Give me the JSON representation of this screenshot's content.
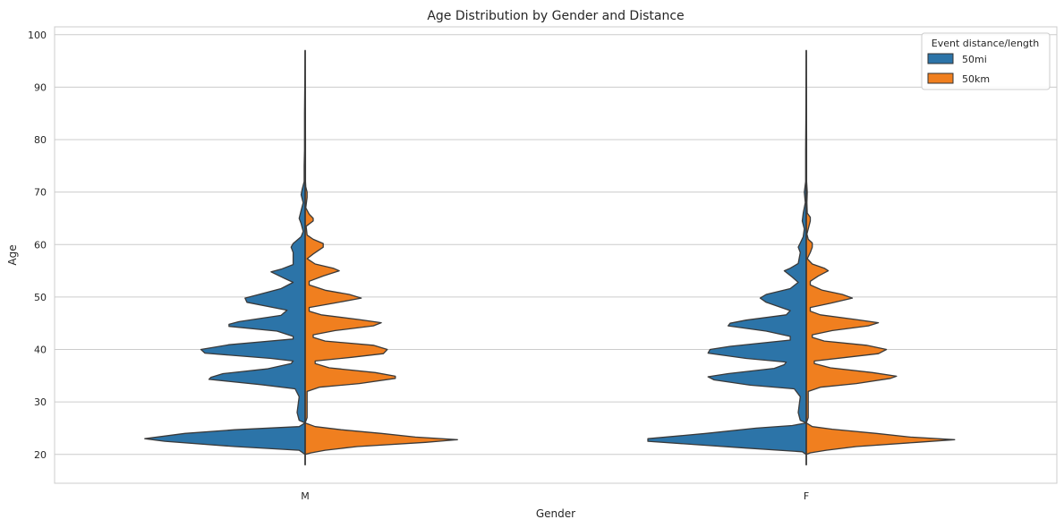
{
  "chart_data": {
    "type": "violin",
    "title": "Age Distribution by Gender and Distance",
    "xlabel": "Gender",
    "ylabel": "Age",
    "categories": [
      "M",
      "F"
    ],
    "ylim": [
      14.5,
      101.5
    ],
    "yticks": [
      20,
      30,
      40,
      50,
      60,
      70,
      80,
      90,
      100
    ],
    "grid": true,
    "split": true,
    "legend": {
      "title": "Event distance/length",
      "placement": "top-right",
      "entries": [
        {
          "name": "50mi",
          "color": "#2c74a8"
        },
        {
          "name": "50km",
          "color": "#f07f1f"
        }
      ]
    },
    "series": [
      {
        "name": "50mi",
        "color": "#2c74a8",
        "side": "left",
        "violins": [
          {
            "category": "M",
            "profile": [
              [
                18,
                0
              ],
              [
                20,
                0
              ],
              [
                20.8,
                0.03
              ],
              [
                21.5,
                0.35
              ],
              [
                22.5,
                0.7
              ],
              [
                23,
                0.8
              ],
              [
                24,
                0.6
              ],
              [
                24.7,
                0.35
              ],
              [
                25.3,
                0.03
              ],
              [
                26,
                0
              ],
              [
                26.5,
                0.03
              ],
              [
                28,
                0.04
              ],
              [
                31,
                0.03
              ],
              [
                32.5,
                0.05
              ],
              [
                33.3,
                0.22
              ],
              [
                34.3,
                0.48
              ],
              [
                34.7,
                0.47
              ],
              [
                35.4,
                0.41
              ],
              [
                36.3,
                0.19
              ],
              [
                37.3,
                0.07
              ],
              [
                37.8,
                0.06
              ],
              [
                38.3,
                0.17
              ],
              [
                39.3,
                0.5
              ],
              [
                40,
                0.52
              ],
              [
                40.9,
                0.38
              ],
              [
                42,
                0.06
              ],
              [
                42.5,
                0.06
              ],
              [
                43.5,
                0.14
              ],
              [
                44.4,
                0.38
              ],
              [
                44.8,
                0.38
              ],
              [
                45.3,
                0.33
              ],
              [
                46.5,
                0.12
              ],
              [
                47.5,
                0.09
              ],
              [
                49,
                0.29
              ],
              [
                49.8,
                0.3
              ],
              [
                50.5,
                0.23
              ],
              [
                51.6,
                0.12
              ],
              [
                52.8,
                0.06
              ],
              [
                53.5,
                0.1
              ],
              [
                54.8,
                0.17
              ],
              [
                55.3,
                0.12
              ],
              [
                56.2,
                0.06
              ],
              [
                58.5,
                0.06
              ],
              [
                59.5,
                0.07
              ],
              [
                60.2,
                0.06
              ],
              [
                61.5,
                0.02
              ],
              [
                62.5,
                0.01
              ],
              [
                64,
                0.02
              ],
              [
                65,
                0.03
              ],
              [
                66.5,
                0.02
              ],
              [
                68,
                0.01
              ],
              [
                69.5,
                0.02
              ],
              [
                70.5,
                0.015
              ],
              [
                72,
                0.005
              ],
              [
                75,
                0.005
              ],
              [
                78,
                0.003
              ],
              [
                85,
                0.003
              ],
              [
                97,
                0
              ]
            ]
          },
          {
            "category": "F",
            "profile": [
              [
                18,
                0
              ],
              [
                20,
                0
              ],
              [
                20.5,
                0.02
              ],
              [
                21.2,
                0.3
              ],
              [
                22.5,
                0.79
              ],
              [
                23,
                0.79
              ],
              [
                24,
                0.5
              ],
              [
                25,
                0.25
              ],
              [
                25.5,
                0.07
              ],
              [
                26,
                0
              ],
              [
                26.5,
                0.03
              ],
              [
                28,
                0.04
              ],
              [
                31,
                0.03
              ],
              [
                32.5,
                0.06
              ],
              [
                33.2,
                0.28
              ],
              [
                34.2,
                0.46
              ],
              [
                34.8,
                0.49
              ],
              [
                35.4,
                0.39
              ],
              [
                36.4,
                0.16
              ],
              [
                37.1,
                0.11
              ],
              [
                37.6,
                0.1
              ],
              [
                38.3,
                0.3
              ],
              [
                39.3,
                0.49
              ],
              [
                40,
                0.48
              ],
              [
                40.6,
                0.38
              ],
              [
                41.8,
                0.08
              ],
              [
                42.5,
                0.08
              ],
              [
                43.5,
                0.2
              ],
              [
                44.5,
                0.39
              ],
              [
                45,
                0.38
              ],
              [
                45.6,
                0.3
              ],
              [
                46.6,
                0.1
              ],
              [
                47.4,
                0.08
              ],
              [
                49,
                0.2
              ],
              [
                49.8,
                0.23
              ],
              [
                50.5,
                0.2
              ],
              [
                51.6,
                0.08
              ],
              [
                52.8,
                0.04
              ],
              [
                53.8,
                0.07
              ],
              [
                55,
                0.11
              ],
              [
                55.5,
                0.08
              ],
              [
                56.4,
                0.04
              ],
              [
                58.5,
                0.03
              ],
              [
                59.5,
                0.04
              ],
              [
                60.3,
                0.03
              ],
              [
                61.5,
                0.015
              ],
              [
                63,
                0.01
              ],
              [
                64.5,
                0.02
              ],
              [
                66,
                0.015
              ],
              [
                68,
                0.005
              ],
              [
                70,
                0.01
              ],
              [
                72,
                0.003
              ],
              [
                78,
                0.003
              ],
              [
                85,
                0.002
              ],
              [
                97,
                0
              ]
            ]
          }
        ]
      },
      {
        "name": "50km",
        "color": "#f07f1f",
        "side": "right",
        "violins": [
          {
            "category": "M",
            "profile": [
              [
                18,
                0
              ],
              [
                20,
                0
              ],
              [
                20.3,
                0.03
              ],
              [
                20.8,
                0.1
              ],
              [
                21.5,
                0.26
              ],
              [
                22.3,
                0.6
              ],
              [
                22.8,
                0.76
              ],
              [
                23.3,
                0.55
              ],
              [
                24,
                0.38
              ],
              [
                24.7,
                0.18
              ],
              [
                25.3,
                0.05
              ],
              [
                26,
                0
              ],
              [
                27,
                0.01
              ],
              [
                30,
                0.01
              ],
              [
                32,
                0.01
              ],
              [
                32.8,
                0.07
              ],
              [
                33.5,
                0.27
              ],
              [
                34.5,
                0.45
              ],
              [
                34.9,
                0.45
              ],
              [
                35.6,
                0.35
              ],
              [
                36.5,
                0.12
              ],
              [
                37.3,
                0.05
              ],
              [
                37.8,
                0.05
              ],
              [
                38.5,
                0.23
              ],
              [
                39.2,
                0.39
              ],
              [
                40,
                0.41
              ],
              [
                40.8,
                0.34
              ],
              [
                41.6,
                0.1
              ],
              [
                42.3,
                0.04
              ],
              [
                42.8,
                0.04
              ],
              [
                43.6,
                0.15
              ],
              [
                44.5,
                0.34
              ],
              [
                45.1,
                0.38
              ],
              [
                45.7,
                0.27
              ],
              [
                46.6,
                0.08
              ],
              [
                47.3,
                0.02
              ],
              [
                48,
                0.02
              ],
              [
                48.8,
                0.14
              ],
              [
                49.8,
                0.28
              ],
              [
                50.5,
                0.22
              ],
              [
                51.3,
                0.1
              ],
              [
                52.3,
                0.02
              ],
              [
                53,
                0.02
              ],
              [
                54,
                0.09
              ],
              [
                55,
                0.17
              ],
              [
                55.5,
                0.14
              ],
              [
                56.3,
                0.05
              ],
              [
                57.3,
                0.01
              ],
              [
                58.2,
                0.04
              ],
              [
                59.5,
                0.09
              ],
              [
                60.2,
                0.09
              ],
              [
                61,
                0.04
              ],
              [
                61.8,
                0.01
              ],
              [
                63.5,
                0.005
              ],
              [
                64.5,
                0.04
              ],
              [
                65,
                0.04
              ],
              [
                65.8,
                0.02
              ],
              [
                67,
                0.003
              ],
              [
                69,
                0.01
              ],
              [
                70,
                0.01
              ],
              [
                71,
                0.003
              ],
              [
                72,
                0.002
              ],
              [
                80,
                0.002
              ],
              [
                97,
                0
              ]
            ]
          },
          {
            "category": "F",
            "profile": [
              [
                18,
                0
              ],
              [
                20,
                0
              ],
              [
                20.3,
                0.02
              ],
              [
                20.8,
                0.1
              ],
              [
                21.5,
                0.25
              ],
              [
                22.3,
                0.55
              ],
              [
                22.8,
                0.74
              ],
              [
                23.3,
                0.52
              ],
              [
                24,
                0.35
              ],
              [
                24.8,
                0.13
              ],
              [
                25.3,
                0.03
              ],
              [
                26,
                0
              ],
              [
                27,
                0.01
              ],
              [
                30,
                0.01
              ],
              [
                32,
                0.01
              ],
              [
                32.8,
                0.07
              ],
              [
                33.5,
                0.25
              ],
              [
                34.5,
                0.42
              ],
              [
                34.9,
                0.45
              ],
              [
                35.6,
                0.33
              ],
              [
                36.5,
                0.12
              ],
              [
                37.3,
                0.04
              ],
              [
                37.8,
                0.04
              ],
              [
                38.5,
                0.2
              ],
              [
                39.2,
                0.36
              ],
              [
                40,
                0.4
              ],
              [
                40.8,
                0.3
              ],
              [
                41.6,
                0.09
              ],
              [
                42.3,
                0.03
              ],
              [
                42.8,
                0.03
              ],
              [
                43.6,
                0.13
              ],
              [
                44.5,
                0.31
              ],
              [
                45.1,
                0.36
              ],
              [
                45.7,
                0.25
              ],
              [
                46.6,
                0.07
              ],
              [
                47.3,
                0.02
              ],
              [
                48,
                0.02
              ],
              [
                48.8,
                0.12
              ],
              [
                49.8,
                0.23
              ],
              [
                50.5,
                0.18
              ],
              [
                51.3,
                0.08
              ],
              [
                52.3,
                0.02
              ],
              [
                53,
                0.02
              ],
              [
                54,
                0.06
              ],
              [
                55,
                0.11
              ],
              [
                55.5,
                0.09
              ],
              [
                56.3,
                0.03
              ],
              [
                57.3,
                0.005
              ],
              [
                58.5,
                0.02
              ],
              [
                59.5,
                0.03
              ],
              [
                60.3,
                0.03
              ],
              [
                61,
                0.01
              ],
              [
                62,
                0.003
              ],
              [
                64.5,
                0.02
              ],
              [
                65.2,
                0.02
              ],
              [
                66,
                0.005
              ],
              [
                68,
                0.003
              ],
              [
                70,
                0.005
              ],
              [
                72,
                0.002
              ],
              [
                80,
                0.002
              ],
              [
                97,
                0
              ]
            ]
          }
        ]
      }
    ]
  }
}
